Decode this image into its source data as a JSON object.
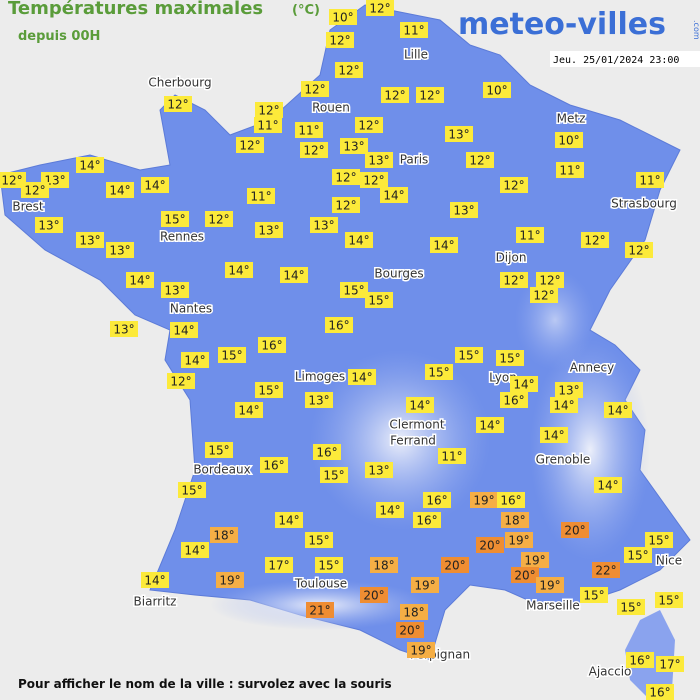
{
  "header": {
    "title": "Températures maximales",
    "unit": "(°C)",
    "subtitle": "depuis 00H",
    "logo": "meteo-villes",
    "logo_suffix": ".com",
    "date": "Jeu. 25/01/2024 23:00"
  },
  "footer": "Pour afficher le nom de la ville : survolez avec la souris",
  "cities": [
    "Cherbourg",
    "Lille",
    "Rouen",
    "Paris",
    "Metz",
    "Brest",
    "Rennes",
    "Strasbourg",
    "Dijon",
    "Bourges",
    "Nantes",
    "Annecy",
    "Limoges",
    "Lyon",
    "Clermont",
    "Ferrand",
    "Grenoble",
    "Bordeaux",
    "Nice",
    "Toulouse",
    "Biarritz",
    "Marseille",
    "Perpignan",
    "Ajaccio"
  ],
  "temperatures": [
    {
      "value": 12,
      "label": "12°"
    },
    {
      "value": 10,
      "label": "10°"
    },
    {
      "value": 11,
      "label": "11°"
    },
    {
      "value": 12,
      "label": "12°"
    },
    {
      "value": 12,
      "label": "12°"
    },
    {
      "value": 12,
      "label": "12°"
    },
    {
      "value": 12,
      "label": "12°"
    },
    {
      "value": 12,
      "label": "12°"
    },
    {
      "value": 11,
      "label": "11°"
    },
    {
      "value": 12,
      "label": "12°"
    },
    {
      "value": 11,
      "label": "11°"
    },
    {
      "value": 12,
      "label": "12°"
    },
    {
      "value": 13,
      "label": "13°"
    },
    {
      "value": 12,
      "label": "12°"
    },
    {
      "value": 12,
      "label": "12°"
    },
    {
      "value": 12,
      "label": "12°"
    },
    {
      "value": 10,
      "label": "10°"
    },
    {
      "value": 13,
      "label": "13°"
    },
    {
      "value": 13,
      "label": "13°"
    },
    {
      "value": 12,
      "label": "12°"
    },
    {
      "value": 10,
      "label": "10°"
    },
    {
      "value": 11,
      "label": "11°"
    },
    {
      "value": 12,
      "label": "12°"
    },
    {
      "value": 12,
      "label": "12°"
    },
    {
      "value": 14,
      "label": "14°"
    },
    {
      "value": 12,
      "label": "12°"
    },
    {
      "value": 12,
      "label": "12°"
    },
    {
      "value": 11,
      "label": "11°"
    },
    {
      "value": 12,
      "label": "12°"
    },
    {
      "value": 13,
      "label": "13°"
    },
    {
      "value": 12,
      "label": "12°"
    },
    {
      "value": 14,
      "label": "14°"
    },
    {
      "value": 14,
      "label": "14°"
    },
    {
      "value": 14,
      "label": "14°"
    },
    {
      "value": 11,
      "label": "11°"
    },
    {
      "value": 15,
      "label": "15°"
    },
    {
      "value": 12,
      "label": "12°"
    },
    {
      "value": 13,
      "label": "13°"
    },
    {
      "value": 13,
      "label": "13°"
    },
    {
      "value": 13,
      "label": "13°"
    },
    {
      "value": 13,
      "label": "13°"
    },
    {
      "value": 13,
      "label": "13°"
    },
    {
      "value": 13,
      "label": "13°"
    },
    {
      "value": 14,
      "label": "14°"
    },
    {
      "value": 14,
      "label": "14°"
    },
    {
      "value": 11,
      "label": "11°"
    },
    {
      "value": 12,
      "label": "12°"
    },
    {
      "value": 12,
      "label": "12°"
    },
    {
      "value": 14,
      "label": "14°"
    },
    {
      "value": 13,
      "label": "13°"
    },
    {
      "value": 14,
      "label": "14°"
    },
    {
      "value": 14,
      "label": "14°"
    },
    {
      "value": 12,
      "label": "12°"
    },
    {
      "value": 12,
      "label": "12°"
    },
    {
      "value": 12,
      "label": "12°"
    },
    {
      "value": 15,
      "label": "15°"
    },
    {
      "value": 15,
      "label": "15°"
    },
    {
      "value": 16,
      "label": "16°"
    },
    {
      "value": 13,
      "label": "13°"
    },
    {
      "value": 14,
      "label": "14°"
    },
    {
      "value": 15,
      "label": "15°"
    },
    {
      "value": 16,
      "label": "16°"
    },
    {
      "value": 14,
      "label": "14°"
    },
    {
      "value": 12,
      "label": "12°"
    },
    {
      "value": 15,
      "label": "15°"
    },
    {
      "value": 15,
      "label": "15°"
    },
    {
      "value": 15,
      "label": "15°"
    },
    {
      "value": 14,
      "label": "14°"
    },
    {
      "value": 14,
      "label": "14°"
    },
    {
      "value": 13,
      "label": "13°"
    },
    {
      "value": 16,
      "label": "16°"
    },
    {
      "value": 14,
      "label": "14°"
    },
    {
      "value": 14,
      "label": "14°"
    },
    {
      "value": 15,
      "label": "15°"
    },
    {
      "value": 14,
      "label": "14°"
    },
    {
      "value": 13,
      "label": "13°"
    },
    {
      "value": 14,
      "label": "14°"
    },
    {
      "value": 14,
      "label": "14°"
    },
    {
      "value": 14,
      "label": "14°"
    },
    {
      "value": 15,
      "label": "15°"
    },
    {
      "value": 16,
      "label": "16°"
    },
    {
      "value": 11,
      "label": "11°"
    },
    {
      "value": 16,
      "label": "16°"
    },
    {
      "value": 13,
      "label": "13°"
    },
    {
      "value": 15,
      "label": "15°"
    },
    {
      "value": 15,
      "label": "15°"
    },
    {
      "value": 14,
      "label": "14°"
    },
    {
      "value": 16,
      "label": "16°"
    },
    {
      "value": 19,
      "label": "19°"
    },
    {
      "value": 16,
      "label": "16°"
    },
    {
      "value": 14,
      "label": "14°"
    },
    {
      "value": 16,
      "label": "16°"
    },
    {
      "value": 18,
      "label": "18°"
    },
    {
      "value": 14,
      "label": "14°"
    },
    {
      "value": 20,
      "label": "20°"
    },
    {
      "value": 18,
      "label": "18°"
    },
    {
      "value": 15,
      "label": "15°"
    },
    {
      "value": 20,
      "label": "20°"
    },
    {
      "value": 19,
      "label": "19°"
    },
    {
      "value": 15,
      "label": "15°"
    },
    {
      "value": 14,
      "label": "14°"
    },
    {
      "value": 15,
      "label": "15°"
    },
    {
      "value": 17,
      "label": "17°"
    },
    {
      "value": 15,
      "label": "15°"
    },
    {
      "value": 18,
      "label": "18°"
    },
    {
      "value": 20,
      "label": "20°"
    },
    {
      "value": 19,
      "label": "19°"
    },
    {
      "value": 20,
      "label": "20°"
    },
    {
      "value": 22,
      "label": "22°"
    },
    {
      "value": 14,
      "label": "14°"
    },
    {
      "value": 19,
      "label": "19°"
    },
    {
      "value": 19,
      "label": "19°"
    },
    {
      "value": 19,
      "label": "19°"
    },
    {
      "value": 20,
      "label": "20°"
    },
    {
      "value": 15,
      "label": "15°"
    },
    {
      "value": 15,
      "label": "15°"
    },
    {
      "value": 15,
      "label": "15°"
    },
    {
      "value": 21,
      "label": "21°"
    },
    {
      "value": 18,
      "label": "18°"
    },
    {
      "value": 20,
      "label": "20°"
    },
    {
      "value": 19,
      "label": "19°"
    },
    {
      "value": 16,
      "label": "16°"
    },
    {
      "value": 17,
      "label": "17°"
    },
    {
      "value": 16,
      "label": "16°"
    }
  ]
}
